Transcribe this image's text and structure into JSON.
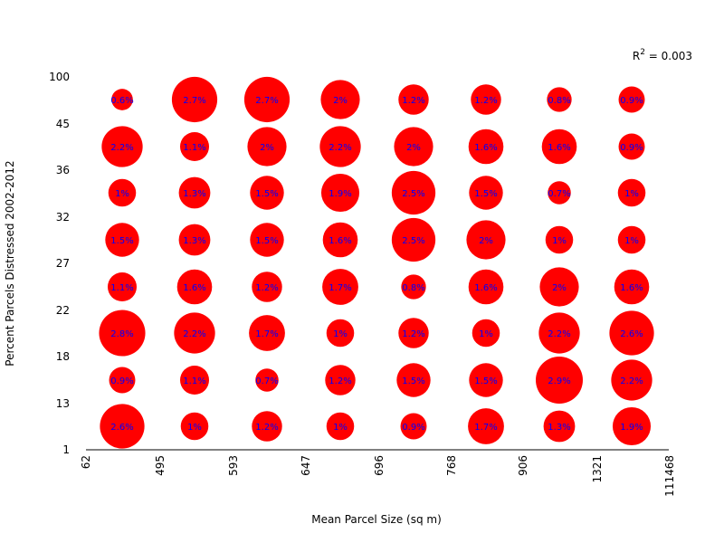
{
  "chart_data": {
    "type": "bubble-grid",
    "title": "",
    "xlabel": "Mean Parcel Size (sq m)",
    "ylabel": "Percent Parcels Distressed 2002-2012",
    "x_tick_labels": [
      "62",
      "495",
      "593",
      "647",
      "696",
      "768",
      "906",
      "1321",
      "111468"
    ],
    "y_tick_labels": [
      "1",
      "13",
      "18",
      "22",
      "27",
      "32",
      "36",
      "45",
      "100"
    ],
    "annotation": {
      "prefix": "R",
      "superscript": "2",
      "suffix": " = 0.003"
    },
    "bubble_color": "#ff0000",
    "label_color": "#0000ff",
    "grid_on": false,
    "rows": [
      {
        "y_bin": "1–13",
        "labels": [
          "2.6%",
          "1%",
          "1.2%",
          "1%",
          "0.9%",
          "1.7%",
          "1.3%",
          "1.9%"
        ],
        "values": [
          2.6,
          1.0,
          1.2,
          1.0,
          0.9,
          1.7,
          1.3,
          1.9
        ]
      },
      {
        "y_bin": "13–18",
        "labels": [
          "0.9%",
          "1.1%",
          "0.7%",
          "1.2%",
          "1.5%",
          "1.5%",
          "2.9%",
          "2.2%"
        ],
        "values": [
          0.9,
          1.1,
          0.7,
          1.2,
          1.5,
          1.5,
          2.9,
          2.2
        ]
      },
      {
        "y_bin": "18–22",
        "labels": [
          "2.8%",
          "2.2%",
          "1.7%",
          "1%",
          "1.2%",
          "1%",
          "2.2%",
          "2.6%"
        ],
        "values": [
          2.8,
          2.2,
          1.7,
          1.0,
          1.2,
          1.0,
          2.2,
          2.6
        ]
      },
      {
        "y_bin": "22–27",
        "labels": [
          "1.1%",
          "1.6%",
          "1.2%",
          "1.7%",
          "0.8%",
          "1.6%",
          "2%",
          "1.6%"
        ],
        "values": [
          1.1,
          1.6,
          1.2,
          1.7,
          0.8,
          1.6,
          2.0,
          1.6
        ]
      },
      {
        "y_bin": "27–32",
        "labels": [
          "1.5%",
          "1.3%",
          "1.5%",
          "1.6%",
          "2.5%",
          "2%",
          "1%",
          "1%"
        ],
        "values": [
          1.5,
          1.3,
          1.5,
          1.6,
          2.5,
          2.0,
          1.0,
          1.0
        ]
      },
      {
        "y_bin": "32–36",
        "labels": [
          "1%",
          "1.3%",
          "1.5%",
          "1.9%",
          "2.5%",
          "1.5%",
          "0.7%",
          "1%"
        ],
        "values": [
          1.0,
          1.3,
          1.5,
          1.9,
          2.5,
          1.5,
          0.7,
          1.0
        ]
      },
      {
        "y_bin": "36–45",
        "labels": [
          "2.2%",
          "1.1%",
          "2%",
          "2.2%",
          "2%",
          "1.6%",
          "1.6%",
          "0.9%"
        ],
        "values": [
          2.2,
          1.1,
          2.0,
          2.2,
          2.0,
          1.6,
          1.6,
          0.9
        ]
      },
      {
        "y_bin": "45–100",
        "labels": [
          "0.6%",
          "2.7%",
          "2.7%",
          "2%",
          "1.2%",
          "1.2%",
          "0.8%",
          "0.9%"
        ],
        "values": [
          0.6,
          2.7,
          2.7,
          2.0,
          1.2,
          1.2,
          0.8,
          0.9
        ]
      }
    ]
  }
}
